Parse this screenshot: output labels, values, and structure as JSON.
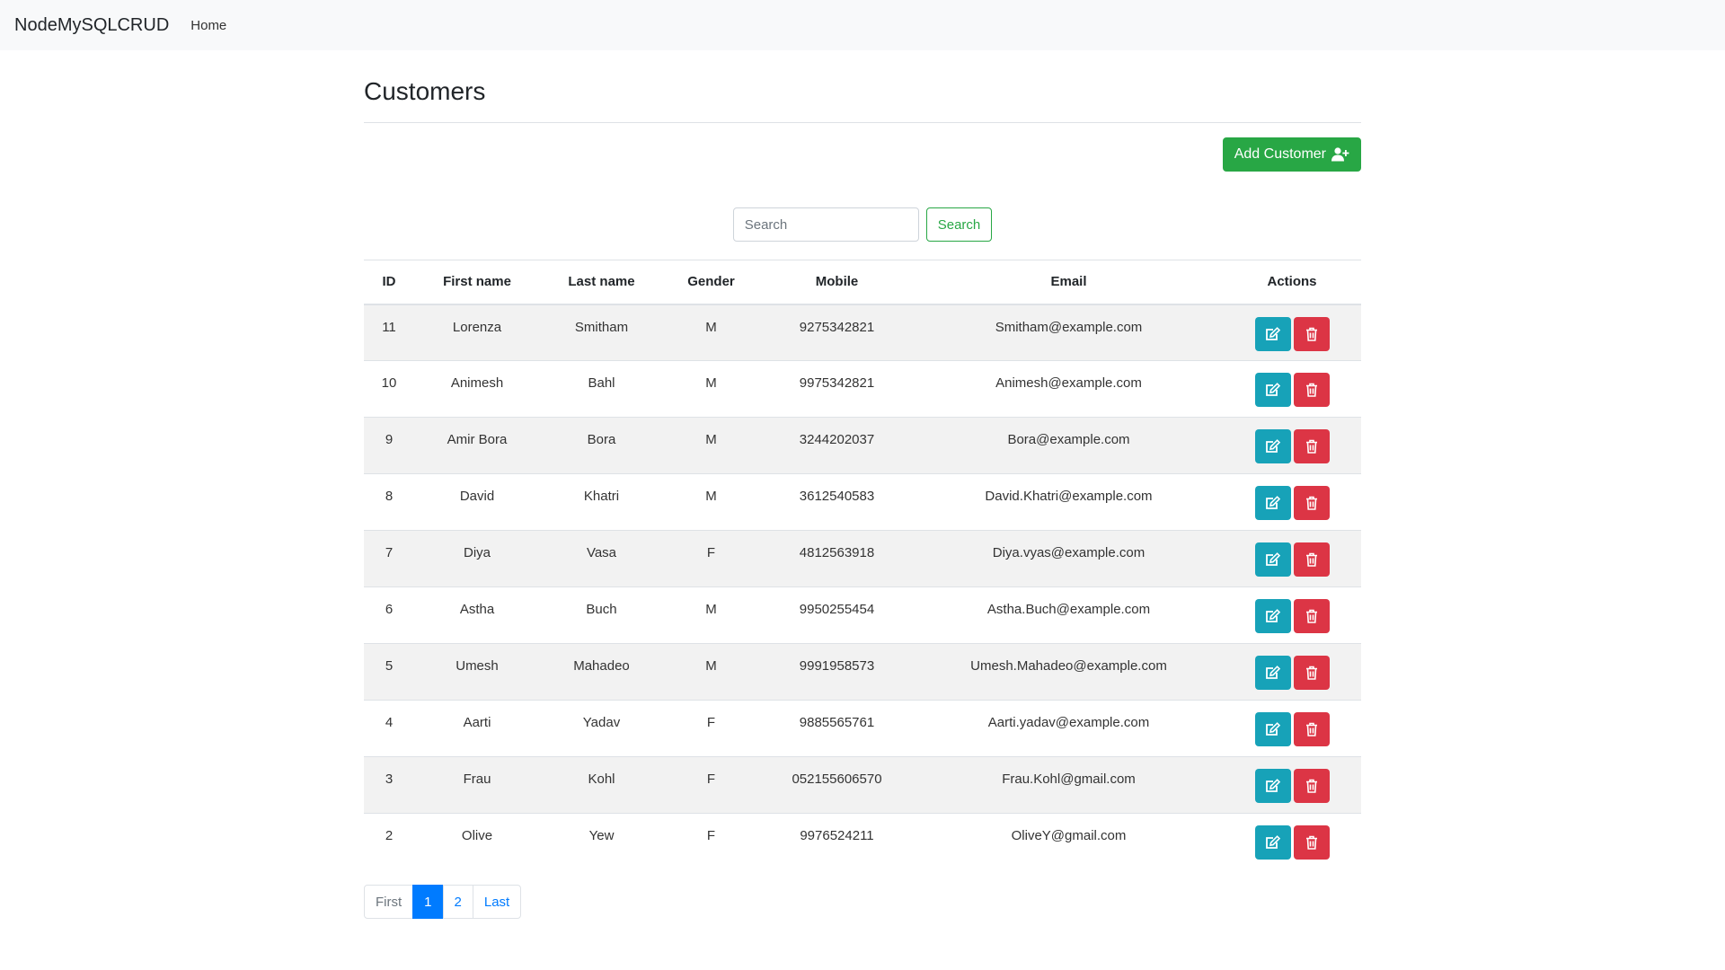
{
  "navbar": {
    "brand": "NodeMySQLCRUD",
    "links": [
      "Home"
    ]
  },
  "page": {
    "title": "Customers",
    "add_button_label": "Add Customer"
  },
  "search": {
    "placeholder": "Search",
    "value": "",
    "button_label": "Search"
  },
  "table": {
    "headers": [
      "ID",
      "First name",
      "Last name",
      "Gender",
      "Mobile",
      "Email",
      "Actions"
    ],
    "rows": [
      [
        "11",
        "Lorenza",
        "Smitham",
        "M",
        "9275342821",
        "Smitham@example.com"
      ],
      [
        "10",
        "Animesh",
        "Bahl",
        "M",
        "9975342821",
        "Animesh@example.com"
      ],
      [
        "9",
        "Amir Bora",
        "Bora",
        "M",
        "3244202037",
        "Bora@example.com"
      ],
      [
        "8",
        "David",
        "Khatri",
        "M",
        "3612540583",
        "David.Khatri@example.com"
      ],
      [
        "7",
        "Diya",
        "Vasa",
        "F",
        "4812563918",
        "Diya.vyas@example.com"
      ],
      [
        "6",
        "Astha",
        "Buch",
        "M",
        "9950255454",
        "Astha.Buch@example.com"
      ],
      [
        "5",
        "Umesh",
        "Mahadeo",
        "M",
        "9991958573",
        "Umesh.Mahadeo@example.com"
      ],
      [
        "4",
        "Aarti",
        "Yadav",
        "F",
        "9885565761",
        "Aarti.yadav@example.com"
      ],
      [
        "3",
        "Frau",
        "Kohl",
        "F",
        "052155606570",
        "Frau.Kohl@gmail.com"
      ],
      [
        "2",
        "Olive",
        "Yew",
        "F",
        "9976524211",
        "OliveY@gmail.com"
      ]
    ],
    "row_actions": {
      "edit_icon": "edit-icon",
      "delete_icon": "trash-icon"
    }
  },
  "pagination": {
    "items": [
      {
        "label": "First",
        "state": "disabled"
      },
      {
        "label": "1",
        "state": "active"
      },
      {
        "label": "2",
        "state": "normal"
      },
      {
        "label": "Last",
        "state": "normal"
      }
    ]
  },
  "colors": {
    "navbar_bg": "#f8f9fa",
    "success": "#28a745",
    "info": "#17a2b8",
    "danger": "#dc3545",
    "primary": "#007bff",
    "stripe": "#f2f2f2"
  },
  "icons": {
    "add_customer_icon": "user-plus-icon"
  }
}
